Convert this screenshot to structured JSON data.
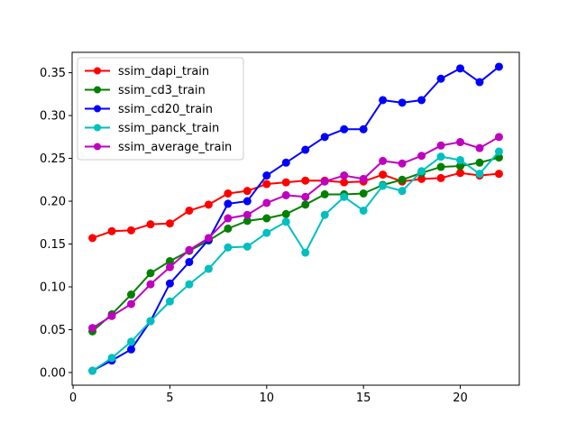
{
  "chart_data": {
    "type": "line",
    "title": "",
    "xlabel": "",
    "ylabel": "",
    "xlim": [
      -0.05,
      23.05
    ],
    "ylim": [
      -0.0148,
      0.3738
    ],
    "xticks": [
      0,
      5,
      10,
      15,
      20
    ],
    "yticks": [
      0.0,
      0.05,
      0.1,
      0.15,
      0.2,
      0.25,
      0.3,
      0.35
    ],
    "grid": false,
    "legend_position": "upper-left",
    "x": [
      1,
      2,
      3,
      4,
      5,
      6,
      7,
      8,
      9,
      10,
      11,
      12,
      13,
      14,
      15,
      16,
      17,
      18,
      19,
      20,
      21,
      22
    ],
    "series": [
      {
        "name": "ssim_dapi_train",
        "color": "#ff0000",
        "values": [
          0.157,
          0.165,
          0.166,
          0.173,
          0.174,
          0.189,
          0.196,
          0.209,
          0.212,
          0.22,
          0.222,
          0.224,
          0.224,
          0.222,
          0.223,
          0.231,
          0.223,
          0.226,
          0.227,
          0.233,
          0.23,
          0.232
        ]
      },
      {
        "name": "ssim_cd3_train",
        "color": "#008000",
        "values": [
          0.048,
          0.068,
          0.091,
          0.116,
          0.13,
          0.142,
          0.154,
          0.168,
          0.177,
          0.18,
          0.185,
          0.196,
          0.208,
          0.208,
          0.209,
          0.219,
          0.225,
          0.233,
          0.24,
          0.241,
          0.245,
          0.251
        ]
      },
      {
        "name": "ssim_cd20_train",
        "color": "#0000ff",
        "values": [
          0.002,
          0.014,
          0.027,
          0.06,
          0.104,
          0.129,
          0.155,
          0.197,
          0.2,
          0.23,
          0.245,
          0.26,
          0.275,
          0.284,
          0.284,
          0.318,
          0.315,
          0.318,
          0.343,
          0.355,
          0.339,
          0.357
        ]
      },
      {
        "name": "ssim_panck_train",
        "color": "#00bfbf",
        "values": [
          0.002,
          0.017,
          0.036,
          0.06,
          0.083,
          0.103,
          0.121,
          0.146,
          0.147,
          0.163,
          0.176,
          0.14,
          0.184,
          0.205,
          0.189,
          0.218,
          0.212,
          0.235,
          0.252,
          0.248,
          0.232,
          0.258
        ]
      },
      {
        "name": "ssim_average_train",
        "color": "#bf00bf",
        "values": [
          0.052,
          0.066,
          0.08,
          0.103,
          0.123,
          0.143,
          0.157,
          0.18,
          0.184,
          0.198,
          0.207,
          0.205,
          0.223,
          0.23,
          0.226,
          0.247,
          0.244,
          0.253,
          0.265,
          0.269,
          0.262,
          0.275
        ]
      }
    ]
  }
}
